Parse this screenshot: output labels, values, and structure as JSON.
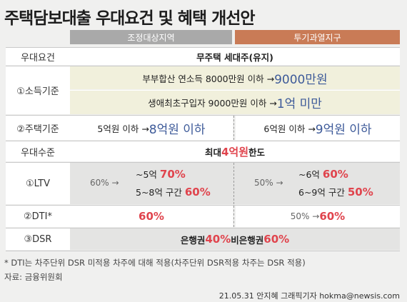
{
  "title": "주택담보대출 우대요건 및 혜택 개선안",
  "headers": {
    "adjusted": "조정대상지역",
    "speculative": "투기과열지구"
  },
  "rows": {
    "requirement": {
      "label": "우대요건",
      "value": "무주택 세대주(유지)"
    },
    "income": {
      "label": "①소득기준",
      "line1_text": "부부합산 연소득 8000만원 이하 → ",
      "line1_highlight": "9000만원",
      "line2_text": "생애최초구입자 9000만원 이하 → ",
      "line2_highlight": "1억 미만"
    },
    "house": {
      "label": "②주택기준",
      "left_text": "5억원 이하 → ",
      "left_highlight": "8억원 이하",
      "right_text": "6억원 이하 → ",
      "right_highlight": "9억원 이하"
    },
    "benefit": {
      "label": "우대수준",
      "prefix": "최대 ",
      "highlight": "4억원",
      "suffix": " 한도"
    },
    "ltv": {
      "label": "①LTV",
      "left_from": "60% →",
      "left_line1_text": "~5억 ",
      "left_line1_highlight": "70%",
      "left_line2_text": "5~8억 구간 ",
      "left_line2_highlight": "60%",
      "right_from": "50% →",
      "right_line1_text": "~6억 ",
      "right_line1_highlight": "60%",
      "right_line2_text": "6~9억 구간 ",
      "right_line2_highlight": "50%"
    },
    "dti": {
      "label": "②DTI*",
      "left_highlight": "60%",
      "right_text": "50% → ",
      "right_highlight": "60%"
    },
    "dsr": {
      "label": "③DSR",
      "text1": "은행권 ",
      "highlight1": "40%",
      "text2": " 비은행권 ",
      "highlight2": "60%"
    }
  },
  "notes": {
    "footnote": "* DTI는 차주단위 DSR 미적용 차주에 대해 적용(차주단위 DSR적용 차주는 DSR 적용)",
    "source": "자료: 금융위원회",
    "credit": "21.05.31 안지혜 그래픽기자 hokma@newsis.com"
  },
  "colors": {
    "blue": "#3d5a99",
    "red": "#e0444d",
    "header_grey": "#a9a9a9",
    "header_orange": "#c97b56",
    "yellow": "#f1f0dc"
  }
}
